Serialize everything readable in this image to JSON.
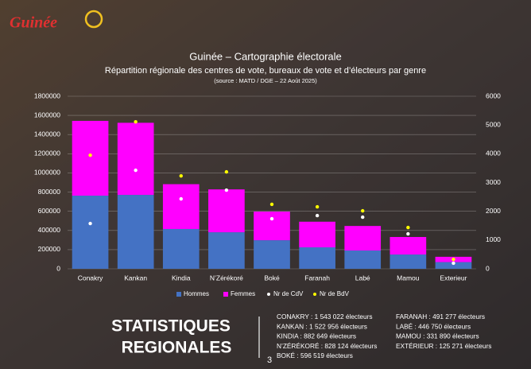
{
  "chart_data": {
    "type": "stacked_bar_dots",
    "title": "Guinée – Cartographie électorale",
    "subtitle": "Répartition régionale des centres de vote, bureaux de vote et d’électeurs par genre",
    "source": "(source : MATD / DGE – 22 Août 2025)",
    "categories": [
      "Conakry",
      "Kankan",
      "Kindia",
      "N’Zérékoré",
      "Boké",
      "Faranah",
      "Labé",
      "Mamou",
      "Exterieur"
    ],
    "series": [
      {
        "name": "Hommes",
        "color": "#4472c4",
        "kind": "bar",
        "values": [
          763000,
          771000,
          415000,
          381000,
          298000,
          224000,
          191000,
          149000,
          70000
        ]
      },
      {
        "name": "Femmes",
        "color": "#ff00ff",
        "kind": "bar",
        "values": [
          780022,
          751956,
          467649,
          447124,
          298519,
          267277,
          255750,
          182890,
          55271
        ]
      },
      {
        "name": "Nr de CdV",
        "color": "#ffffff",
        "kind": "dot",
        "axis": "y2",
        "values": [
          1575,
          3425,
          2430,
          2735,
          1740,
          1850,
          1795,
          1215,
          195
        ]
      },
      {
        "name": "Nr de BdV",
        "color": "#ffff00",
        "kind": "dot",
        "axis": "y2",
        "values": [
          3950,
          5110,
          3230,
          3370,
          2240,
          2155,
          2015,
          1435,
          330
        ]
      }
    ],
    "ylim": [
      0,
      1800000
    ],
    "yticks": [
      0,
      200000,
      400000,
      600000,
      800000,
      1000000,
      1200000,
      1400000,
      1600000,
      1800000
    ],
    "y2lim": [
      0,
      6000
    ],
    "y2ticks": [
      0,
      1000,
      2000,
      3000,
      4000,
      5000,
      6000
    ],
    "grid": true,
    "legend": "bottom"
  },
  "logo_text": "Guinée",
  "footer": {
    "heading": [
      "STATISTIQUES",
      "REGIONALES"
    ],
    "list_left": [
      "CONAKRY : 1 543 022 électeurs",
      "KANKAN : 1 522 956 électeurs",
      "KINDIA : 882 649 électeurs",
      "N’ZÉRÉKORÉ : 828 124 électeurs",
      "BOKÉ : 596 519 électeurs"
    ],
    "list_right": [
      "FARANAH : 491 277 électeurs",
      "LABÉ : 446 750 électeurs",
      "MAMOU : 331 890 électeurs",
      "EXTÉRIEUR : 125 271 électeurs"
    ],
    "page_number": "3"
  }
}
